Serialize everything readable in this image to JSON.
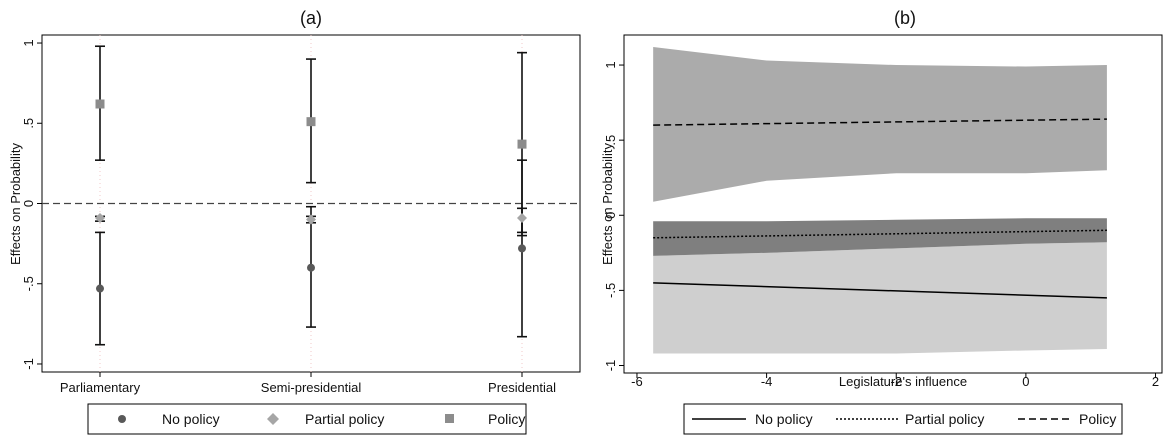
{
  "chart_data": [
    {
      "type": "scatter",
      "title": "(a)",
      "xlabel": "",
      "ylabel": "Effects on Probability",
      "categories": [
        "Parliamentary",
        "Semi-presidential",
        "Presidential"
      ],
      "yticks": [
        "1",
        ".5",
        "0",
        "-.5",
        "-1"
      ],
      "ylim": [
        -1.05,
        1.05
      ],
      "reference_line": 0,
      "series": [
        {
          "name": "No policy",
          "marker": "circle",
          "color": "#595959",
          "values": [
            -0.53,
            -0.4,
            -0.28
          ],
          "ci_low": [
            -0.88,
            -0.77,
            -0.83
          ],
          "ci_high": [
            -0.18,
            -0.02,
            0.27
          ]
        },
        {
          "name": "Partial policy",
          "marker": "diamond",
          "color": "#a6a6a6",
          "values": [
            -0.09,
            -0.1,
            -0.09
          ],
          "ci_low": [
            -0.11,
            -0.12,
            -0.18
          ],
          "ci_high": [
            -0.08,
            -0.08,
            -0.03
          ]
        },
        {
          "name": "Policy",
          "marker": "square",
          "color": "#8c8c8c",
          "values": [
            0.62,
            0.51,
            0.37
          ],
          "ci_low": [
            0.27,
            0.13,
            -0.2
          ],
          "ci_high": [
            0.98,
            0.9,
            0.94
          ]
        }
      ],
      "legend": "bottom"
    },
    {
      "type": "line",
      "title": "(b)",
      "xlabel": "Legislature's influence",
      "ylabel": "Effects on Probability",
      "xticks": [
        "-6",
        "-4",
        "-2",
        "0",
        "2"
      ],
      "yticks": [
        "1",
        ".5",
        "0",
        "-.5",
        "-1"
      ],
      "xlim": [
        -6.2,
        2.1
      ],
      "ylim": [
        -1.05,
        1.2
      ],
      "series": [
        {
          "name": "No policy",
          "dash": "solid",
          "x": [
            -5.75,
            1.25
          ],
          "y": [
            -0.45,
            -0.55
          ],
          "band_x": [
            -5.75,
            -4,
            -2,
            0,
            1.25
          ],
          "band_low": [
            -0.92,
            -0.92,
            -0.92,
            -0.9,
            -0.89
          ],
          "band_high": [
            -0.27,
            -0.25,
            -0.22,
            -0.19,
            -0.18
          ],
          "band_color": "#cfcfcf"
        },
        {
          "name": "Partial policy",
          "dash": "dotted",
          "x": [
            -5.75,
            1.25
          ],
          "y": [
            -0.15,
            -0.1
          ],
          "band_x": [
            -5.75,
            -4,
            -2,
            0,
            1.25
          ],
          "band_low": [
            -0.27,
            -0.25,
            -0.22,
            -0.19,
            -0.18
          ],
          "band_high": [
            -0.04,
            -0.04,
            -0.03,
            -0.02,
            -0.02
          ],
          "band_color": "#7f7f7f"
        },
        {
          "name": "Policy",
          "dash": "dashed",
          "x": [
            -5.75,
            1.25
          ],
          "y": [
            0.6,
            0.64
          ],
          "band_x": [
            -5.75,
            -4,
            -2,
            0,
            1.25
          ],
          "band_low": [
            0.09,
            0.23,
            0.28,
            0.28,
            0.3
          ],
          "band_high": [
            1.12,
            1.03,
            1.0,
            0.99,
            1.0
          ],
          "band_color": "#ababab"
        }
      ],
      "legend": "bottom"
    }
  ]
}
